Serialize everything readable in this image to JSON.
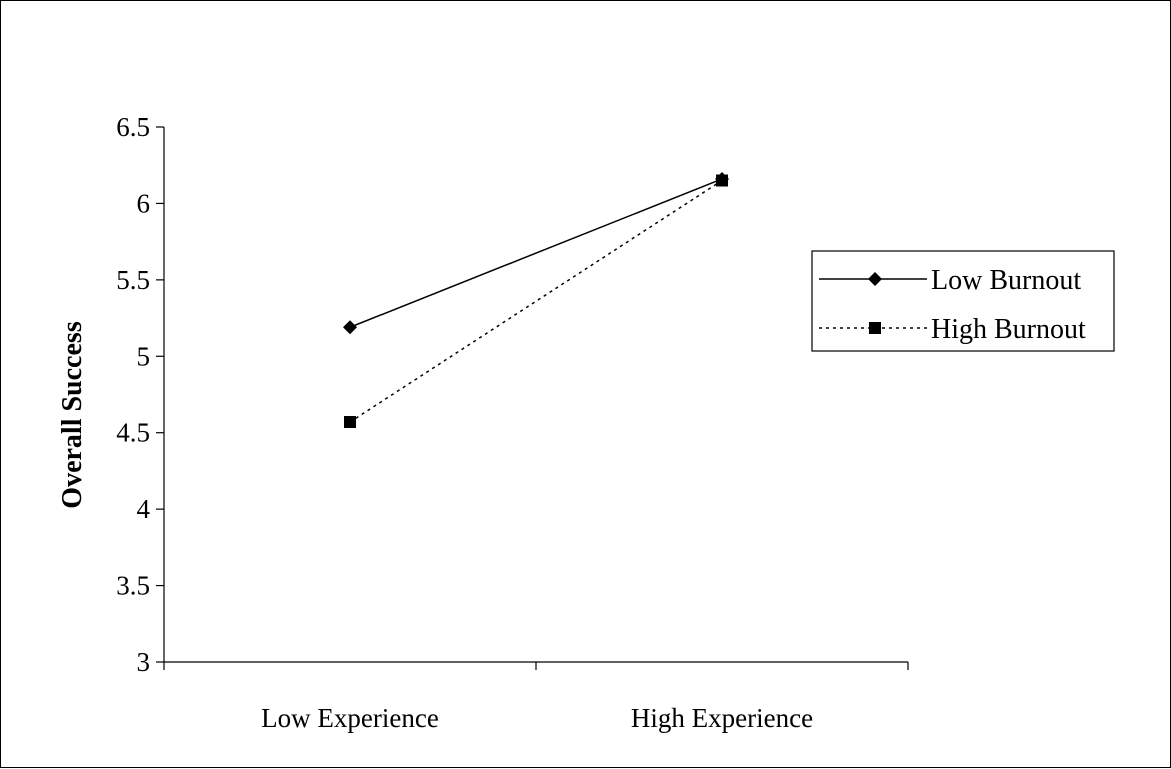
{
  "chart_data": {
    "type": "line",
    "categories": [
      "Low Experience",
      "High Experience"
    ],
    "series": [
      {
        "name": "Low Burnout",
        "values": [
          5.19,
          6.16
        ],
        "marker": "diamond",
        "line_style": "solid",
        "color": "#000000"
      },
      {
        "name": "High Burnout",
        "values": [
          4.57,
          6.15
        ],
        "marker": "square",
        "line_style": "dotted",
        "color": "#000000"
      }
    ],
    "title": "",
    "xlabel": "",
    "ylabel": "Overall Success",
    "ylim": [
      3,
      6.5
    ],
    "yticks": [
      "3",
      "3.5",
      "4",
      "4.5",
      "5",
      "5.5",
      "6",
      "6.5"
    ],
    "grid": false,
    "legend_position": "right"
  }
}
